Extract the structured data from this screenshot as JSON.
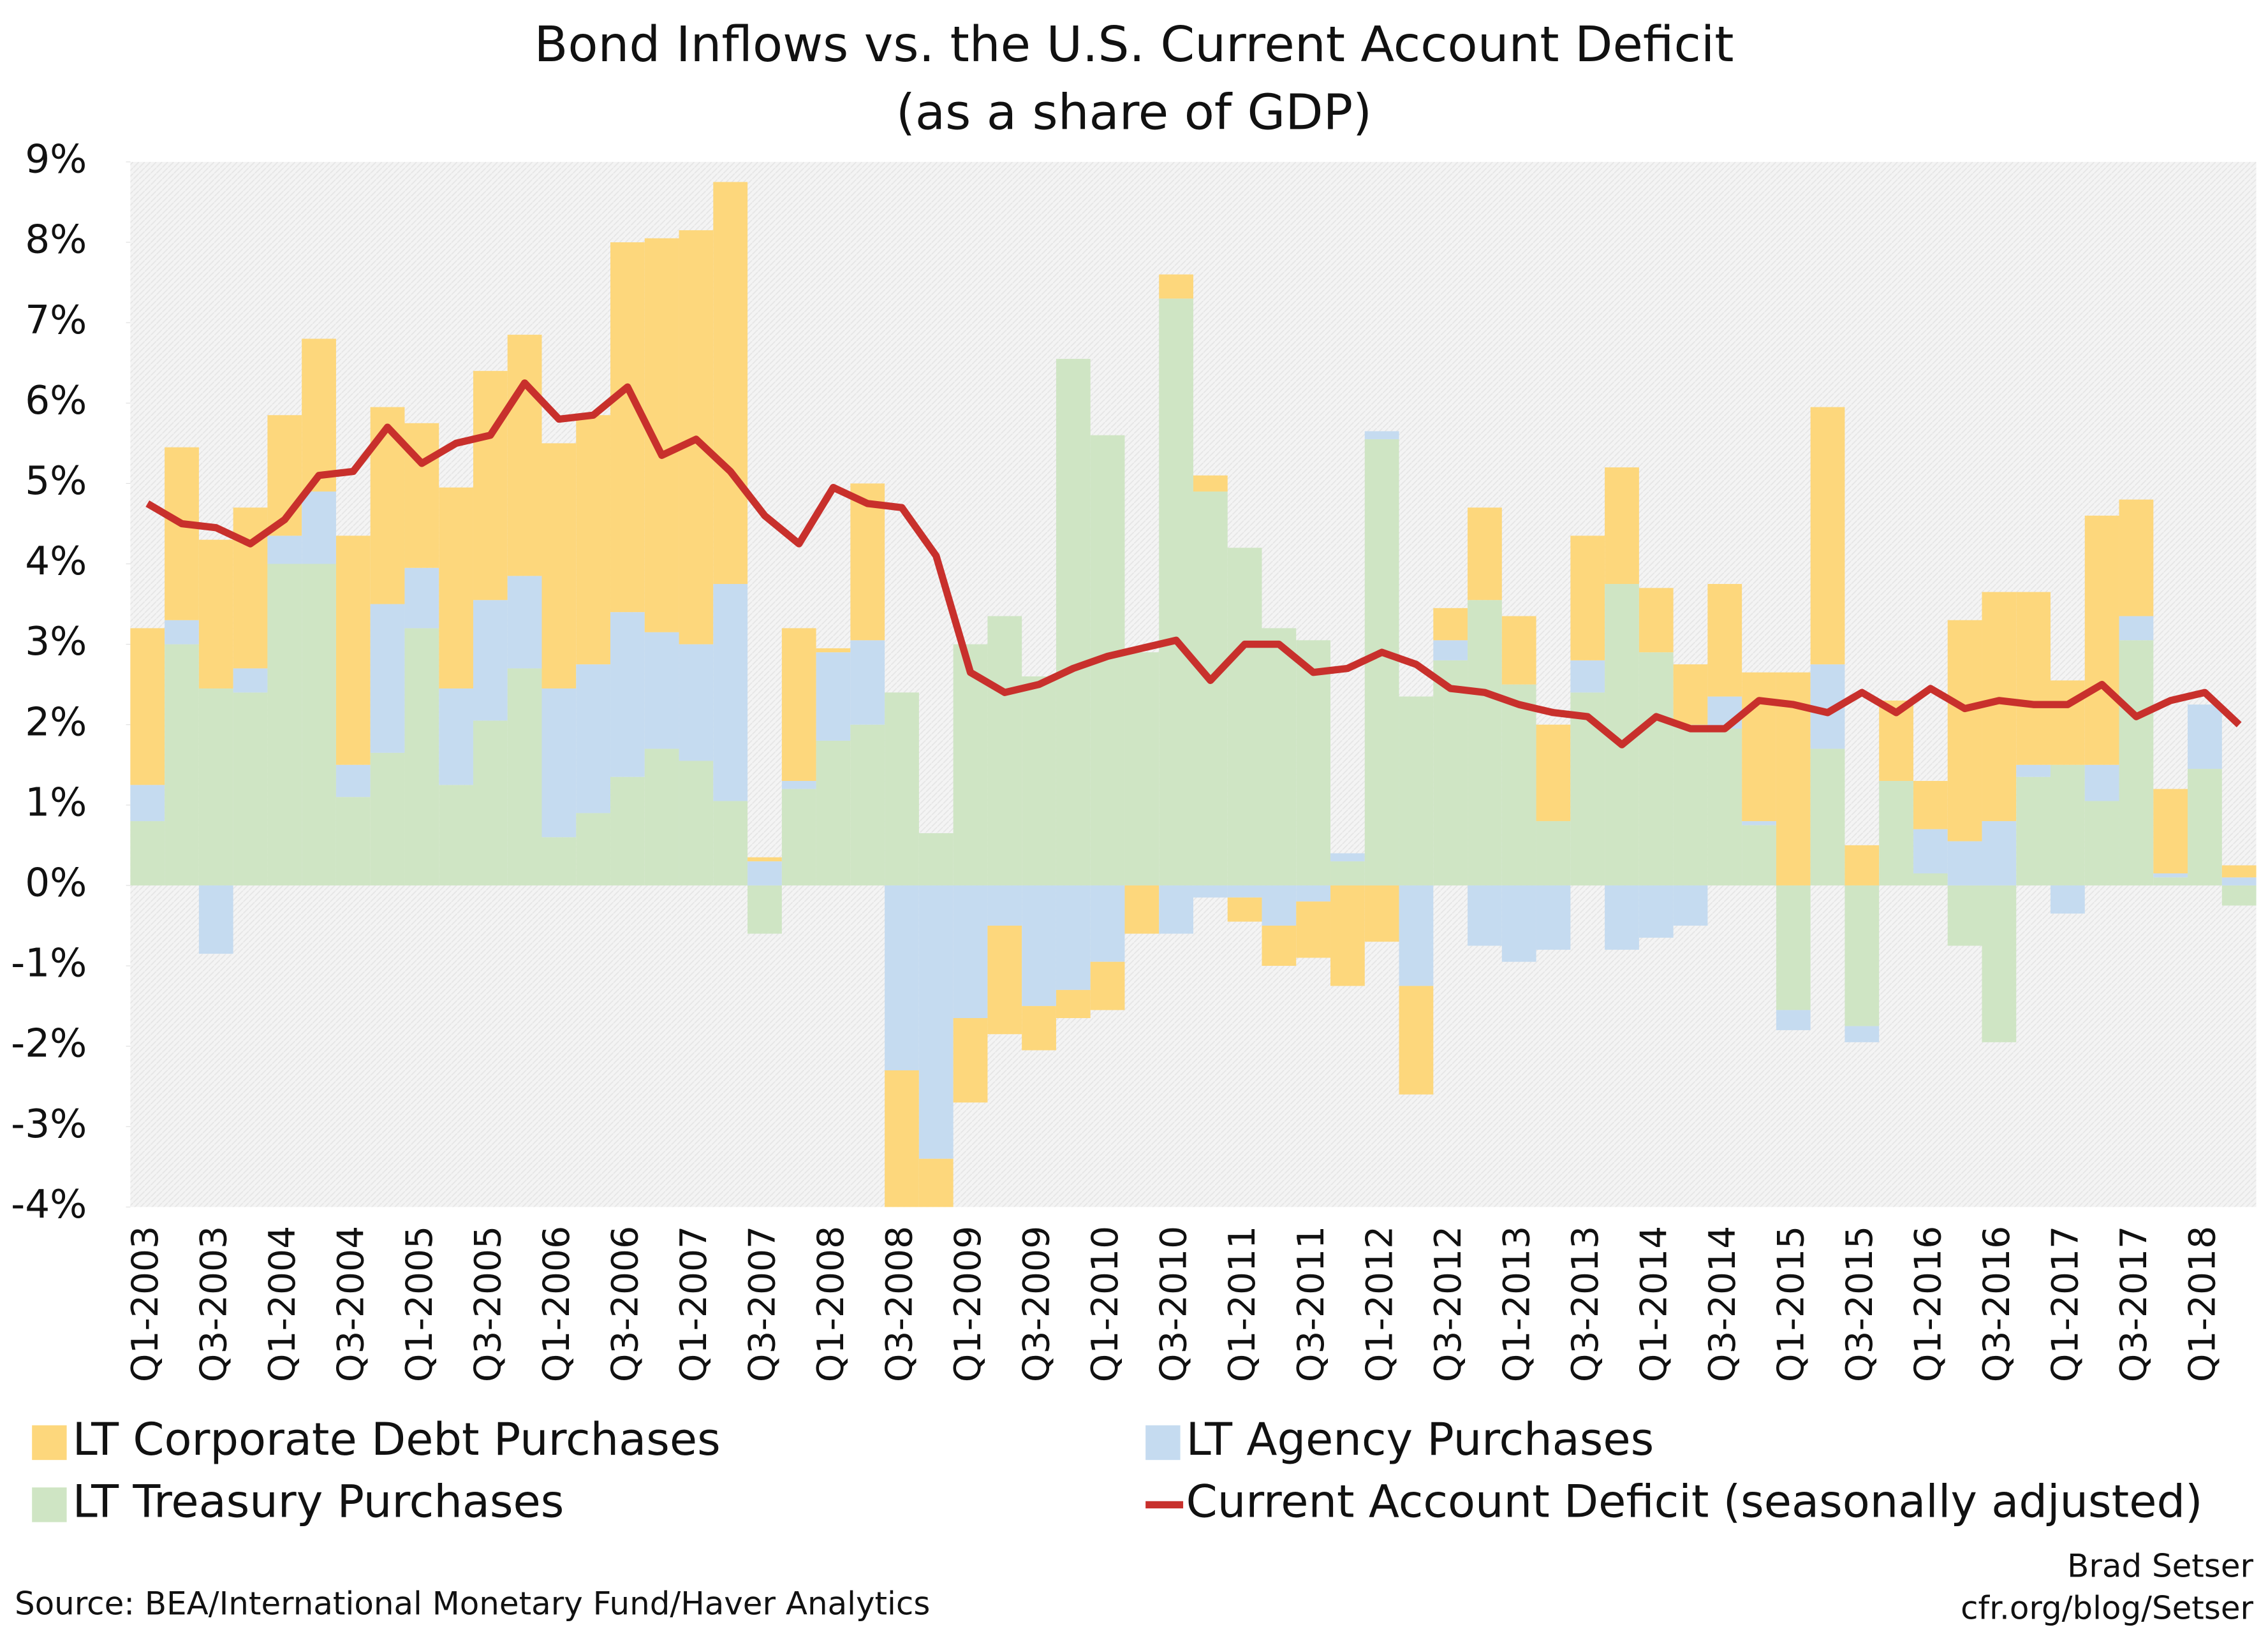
{
  "chart_data": {
    "type": "bar",
    "title": "Bond Inflows vs. the U.S. Current Account Deficit",
    "subtitle": "(as a share of GDP)",
    "categories": [
      "Q1-2003",
      null,
      "Q3-2003",
      null,
      "Q1-2004",
      null,
      "Q3-2004",
      null,
      "Q1-2005",
      null,
      "Q3-2005",
      null,
      "Q1-2006",
      null,
      "Q3-2006",
      null,
      "Q1-2007",
      null,
      "Q3-2007",
      null,
      "Q1-2008",
      null,
      "Q3-2008",
      null,
      "Q1-2009",
      null,
      "Q3-2009",
      null,
      "Q1-2010",
      null,
      "Q3-2010",
      null,
      "Q1-2011",
      null,
      "Q3-2011",
      null,
      "Q1-2012",
      null,
      "Q3-2012",
      null,
      "Q1-2013",
      null,
      "Q3-2013",
      null,
      "Q1-2014",
      null,
      "Q3-2014",
      null,
      "Q1-2015",
      null,
      "Q3-2015",
      null,
      "Q1-2016",
      null,
      "Q3-2016",
      null,
      "Q1-2017",
      null,
      "Q3-2017",
      null,
      "Q1-2018",
      null
    ],
    "series": [
      {
        "name": "LT Corporate Debt Purchases",
        "type": "bar",
        "color": "#fdd77c",
        "values": [
          1.95,
          2.15,
          1.85,
          2.0,
          1.5,
          1.9,
          2.85,
          2.45,
          1.8,
          2.5,
          2.85,
          3.0,
          3.05,
          3.1,
          4.6,
          4.9,
          5.15,
          5.0,
          0.05,
          1.9,
          0.05,
          1.95,
          -1.7,
          -0.6,
          -1.05,
          -1.35,
          -0.55,
          -0.35,
          -0.6,
          -0.6,
          0.3,
          0.2,
          -0.3,
          -0.5,
          -0.7,
          -1.25,
          -0.7,
          -1.35,
          0.4,
          1.15,
          0.85,
          1.2,
          1.55,
          1.45,
          0.8,
          0.75,
          1.4,
          1.85,
          2.65,
          3.2,
          0.5,
          1.0,
          0.6,
          2.75,
          2.85,
          2.15,
          1.05,
          3.1,
          1.45,
          1.05,
          0,
          0.15
        ]
      },
      {
        "name": "LT Agency Purchases",
        "type": "bar",
        "color": "#c5dbf0",
        "values": [
          0.45,
          0.3,
          -0.85,
          0.3,
          0.35,
          0.9,
          0.4,
          1.85,
          0.75,
          1.2,
          1.5,
          1.15,
          1.85,
          1.85,
          2.05,
          1.45,
          1.45,
          2.7,
          0.3,
          0.1,
          1.1,
          1.05,
          -2.3,
          -3.4,
          -1.65,
          -0.5,
          -1.5,
          -1.3,
          -0.95,
          0,
          -0.6,
          -0.15,
          -0.15,
          -0.5,
          -0.2,
          0.1,
          0.1,
          -1.25,
          0.25,
          -0.75,
          -0.95,
          -0.8,
          0.4,
          -0.8,
          -0.65,
          -0.5,
          0.4,
          0.05,
          -0.25,
          1.05,
          -0.2,
          0,
          0.55,
          0.55,
          0.8,
          0.15,
          -0.35,
          0.45,
          0.3,
          0.05,
          0.8,
          0.1
        ]
      },
      {
        "name": "LT Treasury Purchases",
        "type": "bar",
        "color": "#cfe5c4",
        "values": [
          0.8,
          3.0,
          2.45,
          2.4,
          4.0,
          4.0,
          1.1,
          1.65,
          3.2,
          1.25,
          2.05,
          2.7,
          0.6,
          0.9,
          1.35,
          1.7,
          1.55,
          1.05,
          -0.6,
          1.2,
          1.8,
          2.0,
          2.4,
          0.65,
          3.0,
          3.35,
          2.6,
          6.55,
          5.6,
          2.9,
          7.3,
          4.9,
          4.2,
          3.2,
          3.05,
          0.3,
          5.55,
          2.35,
          2.8,
          3.55,
          2.5,
          0.8,
          2.4,
          3.75,
          2.9,
          2.0,
          1.95,
          0.75,
          -1.55,
          1.7,
          -1.75,
          1.3,
          0.15,
          -0.75,
          -1.95,
          1.35,
          1.5,
          1.05,
          3.05,
          0.1,
          1.45,
          -0.25
        ]
      },
      {
        "name": "Current Account Deficit (seasonally adjusted)",
        "type": "line",
        "color": "#c8302c",
        "values": [
          4.75,
          4.5,
          4.45,
          4.25,
          4.55,
          5.1,
          5.15,
          5.7,
          5.25,
          5.5,
          5.6,
          6.25,
          5.8,
          5.85,
          6.2,
          5.35,
          5.55,
          5.15,
          4.6,
          4.25,
          4.95,
          4.75,
          4.7,
          4.1,
          2.65,
          2.4,
          2.5,
          2.7,
          2.85,
          2.95,
          3.05,
          2.55,
          3.0,
          3.0,
          2.65,
          2.7,
          2.9,
          2.75,
          2.45,
          2.4,
          2.25,
          2.15,
          2.1,
          1.75,
          2.1,
          1.95,
          1.95,
          2.3,
          2.25,
          2.15,
          2.4,
          2.15,
          2.45,
          2.2,
          2.3,
          2.25,
          2.25,
          2.5,
          2.1,
          2.3,
          2.4,
          2.0
        ]
      }
    ],
    "ylim": [
      -4,
      9
    ],
    "yticks": [
      {
        "value": -4,
        "label": "-4%"
      },
      {
        "value": -3,
        "label": "-3%"
      },
      {
        "value": -2,
        "label": "-2%"
      },
      {
        "value": -1,
        "label": "-1%"
      },
      {
        "value": 0,
        "label": "0%"
      },
      {
        "value": 1,
        "label": "1%"
      },
      {
        "value": 2,
        "label": "2%"
      },
      {
        "value": 3,
        "label": "3%"
      },
      {
        "value": 4,
        "label": "4%"
      },
      {
        "value": 5,
        "label": "5%"
      },
      {
        "value": 6,
        "label": "6%"
      },
      {
        "value": 7,
        "label": "7%"
      },
      {
        "value": 8,
        "label": "8%"
      },
      {
        "value": 9,
        "label": "9%"
      }
    ],
    "legend": "bottom",
    "source": "Source: BEA/International Monetary Fund/Haver Analytics",
    "credit": [
      "Brad Setser",
      "cfr.org/blog/Setser"
    ]
  }
}
